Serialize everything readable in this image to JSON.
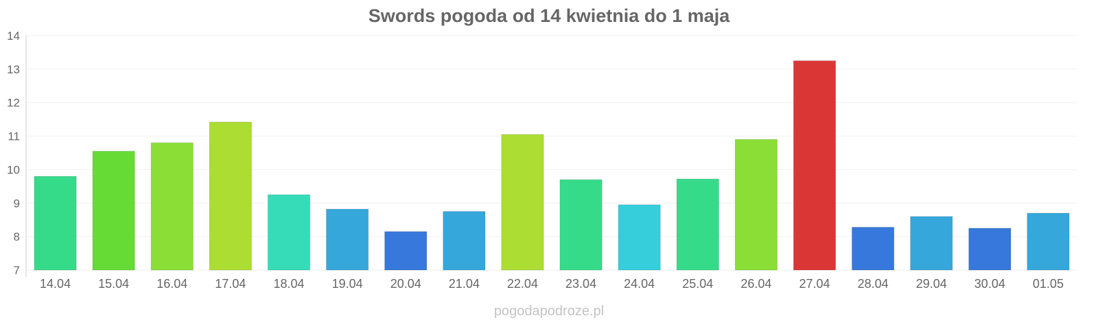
{
  "chart_data": {
    "type": "bar",
    "title": "Swords pogoda od 14 kwietnia do 1 maja",
    "xlabel": "",
    "ylabel": "",
    "ylim": [
      7,
      14
    ],
    "yticks": [
      "7",
      "8",
      "9",
      "10",
      "11",
      "12",
      "13",
      "14"
    ],
    "grid": true,
    "categories": [
      "14.04",
      "15.04",
      "16.04",
      "17.04",
      "18.04",
      "19.04",
      "20.04",
      "21.04",
      "22.04",
      "23.04",
      "24.04",
      "25.04",
      "26.04",
      "27.04",
      "28.04",
      "29.04",
      "30.04",
      "01.05"
    ],
    "values": [
      9.8,
      10.55,
      10.8,
      11.42,
      9.25,
      8.82,
      8.15,
      8.75,
      11.05,
      9.7,
      8.95,
      9.72,
      10.9,
      13.25,
      8.28,
      8.6,
      8.25,
      8.7
    ],
    "colors": [
      "#36db8a",
      "#66db36",
      "#8ade36",
      "#acdd33",
      "#36dbb8",
      "#36a7db",
      "#3678db",
      "#36a7db",
      "#acdd33",
      "#36db8a",
      "#36cedb",
      "#36db8a",
      "#8ade36",
      "#db3636",
      "#3678db",
      "#36a7db",
      "#3678db",
      "#36a7db"
    ]
  },
  "watermark": "pogodapodroze.pl"
}
